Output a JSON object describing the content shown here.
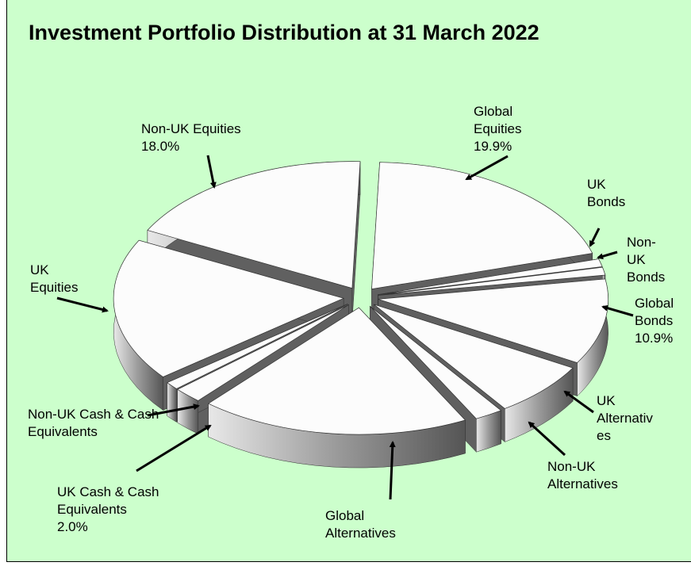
{
  "chart_data": {
    "type": "pie",
    "title": "Investment Portfolio Distribution at 31 March 2022",
    "categories": [
      "Global Equities",
      "UK Bonds",
      "Non-UK Bonds",
      "Global Bonds",
      "UK Alternatives",
      "Non-UK Alternatives",
      "Global Alternatives",
      "UK Cash & Cash Equivalents",
      "Non-UK Cash & Cash Equivalents",
      "UK Equities",
      "Non-UK Equities"
    ],
    "values": [
      19.9,
      1,
      1,
      10.9,
      7,
      2,
      19,
      2.0,
      1,
      18.2,
      18.0
    ],
    "value_labels": [
      "19.9%",
      null,
      null,
      "10.9%",
      null,
      null,
      null,
      "2.0%",
      null,
      null,
      "18.0%"
    ]
  }
}
